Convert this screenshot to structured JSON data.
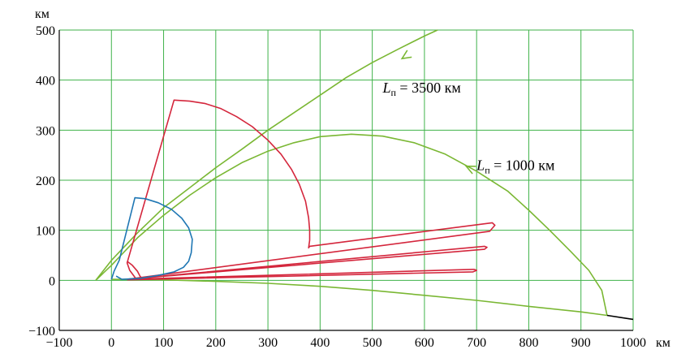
{
  "chart_data": {
    "type": "line",
    "x_unit": "км",
    "y_unit": "км",
    "xlim": [
      -100,
      1000
    ],
    "ylim": [
      -100,
      500
    ],
    "x_ticks": [
      -100,
      0,
      100,
      200,
      300,
      400,
      500,
      600,
      700,
      800,
      900,
      1000
    ],
    "y_ticks": [
      -100,
      0,
      100,
      200,
      300,
      400,
      500
    ],
    "x_tick_labels": [
      "−100",
      "0",
      "100",
      "200",
      "300",
      "400",
      "500",
      "600",
      "700",
      "800",
      "900",
      "1000"
    ],
    "y_tick_labels": [
      "−100",
      "0",
      "100",
      "200",
      "300",
      "400",
      "500"
    ],
    "grid": true,
    "colors": {
      "grid": "#3fb24a",
      "green": "#7ab733",
      "red": "#d4263c",
      "blue": "#1f77b4",
      "axis": "#000000"
    },
    "annotations": [
      {
        "id": "ann1",
        "italic": "L",
        "sub": "п",
        "text": " = 3500 км",
        "x": 520,
        "y": 375
      },
      {
        "id": "ann2",
        "italic": "L",
        "sub": "п",
        "text": " = 1000 км",
        "x": 700,
        "y": 220
      }
    ],
    "series": [
      {
        "id": "green-3500",
        "color": "#7ab733",
        "points": [
          [
            -30,
            0
          ],
          [
            0,
            40
          ],
          [
            50,
            95
          ],
          [
            100,
            145
          ],
          [
            150,
            185
          ],
          [
            200,
            225
          ],
          [
            250,
            262
          ],
          [
            300,
            300
          ],
          [
            350,
            335
          ],
          [
            400,
            370
          ],
          [
            450,
            405
          ],
          [
            500,
            435
          ],
          [
            550,
            462
          ],
          [
            600,
            488
          ],
          [
            625,
            500
          ]
        ],
        "arrow": {
          "at": [
            557,
            443
          ],
          "towards": [
            520,
            418
          ]
        }
      },
      {
        "id": "green-1000",
        "color": "#7ab733",
        "points": [
          [
            -30,
            0
          ],
          [
            0,
            30
          ],
          [
            50,
            85
          ],
          [
            100,
            130
          ],
          [
            150,
            170
          ],
          [
            200,
            205
          ],
          [
            250,
            235
          ],
          [
            300,
            258
          ],
          [
            350,
            275
          ],
          [
            400,
            287
          ],
          [
            460,
            292
          ],
          [
            520,
            288
          ],
          [
            580,
            275
          ],
          [
            640,
            252
          ],
          [
            700,
            218
          ],
          [
            760,
            178
          ],
          [
            800,
            140
          ],
          [
            840,
            100
          ],
          [
            880,
            58
          ],
          [
            915,
            20
          ],
          [
            940,
            -20
          ],
          [
            950,
            -70
          ]
        ],
        "arrow": {
          "at": [
            680,
            228
          ],
          "towards": [
            660,
            238
          ]
        }
      },
      {
        "id": "green-lower",
        "color": "#7ab733",
        "points": [
          [
            0,
            2
          ],
          [
            100,
            1
          ],
          [
            200,
            -2
          ],
          [
            300,
            -6
          ],
          [
            400,
            -12
          ],
          [
            500,
            -20
          ],
          [
            600,
            -30
          ],
          [
            700,
            -40
          ],
          [
            800,
            -52
          ],
          [
            900,
            -63
          ],
          [
            950,
            -70
          ]
        ]
      },
      {
        "id": "black-tail",
        "color": "#000000",
        "points": [
          [
            950,
            -70
          ],
          [
            1000,
            -78
          ]
        ]
      },
      {
        "id": "red-main",
        "color": "#d4263c",
        "points": [
          [
            48,
            2
          ],
          [
            35,
            20
          ],
          [
            30,
            35
          ],
          [
            120,
            360
          ],
          [
            150,
            358
          ],
          [
            180,
            353
          ],
          [
            210,
            343
          ],
          [
            240,
            327
          ],
          [
            270,
            307
          ],
          [
            300,
            280
          ],
          [
            325,
            252
          ],
          [
            345,
            222
          ],
          [
            360,
            192
          ],
          [
            372,
            158
          ],
          [
            378,
            125
          ],
          [
            380,
            100
          ],
          [
            380,
            80
          ],
          [
            378,
            65
          ],
          [
            380,
            68
          ],
          [
            730,
            115
          ],
          [
            735,
            110
          ],
          [
            725,
            98
          ],
          [
            30,
            2
          ]
        ]
      },
      {
        "id": "red-mid",
        "color": "#d4263c",
        "points": [
          [
            30,
            2
          ],
          [
            715,
            68
          ],
          [
            720,
            66
          ],
          [
            715,
            62
          ],
          [
            30,
            2
          ]
        ]
      },
      {
        "id": "red-low",
        "color": "#d4263c",
        "points": [
          [
            30,
            2
          ],
          [
            695,
            22
          ],
          [
            700,
            20
          ],
          [
            693,
            17
          ],
          [
            30,
            1
          ]
        ]
      },
      {
        "id": "red-inner",
        "color": "#d4263c",
        "points": [
          [
            30,
            38
          ],
          [
            40,
            30
          ],
          [
            50,
            18
          ],
          [
            55,
            8
          ],
          [
            60,
            3
          ]
        ]
      },
      {
        "id": "blue",
        "color": "#1f77b4",
        "points": [
          [
            0,
            2
          ],
          [
            5,
            18
          ],
          [
            15,
            40
          ],
          [
            45,
            165
          ],
          [
            65,
            163
          ],
          [
            90,
            155
          ],
          [
            115,
            142
          ],
          [
            135,
            124
          ],
          [
            148,
            105
          ],
          [
            155,
            82
          ],
          [
            153,
            55
          ],
          [
            148,
            38
          ],
          [
            138,
            26
          ],
          [
            120,
            17
          ],
          [
            90,
            10
          ],
          [
            55,
            4
          ],
          [
            20,
            2
          ],
          [
            10,
            8
          ],
          [
            20,
            2
          ]
        ]
      }
    ]
  }
}
